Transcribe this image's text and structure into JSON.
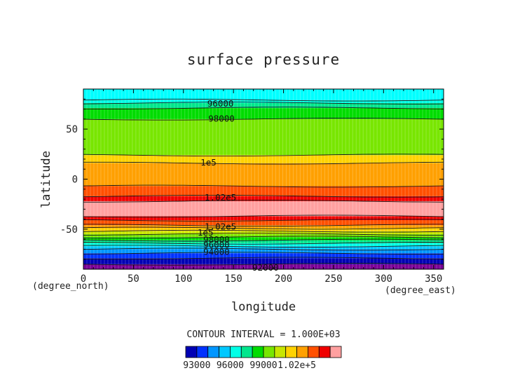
{
  "chart_data": {
    "type": "heatmap",
    "title": "surface pressure",
    "xlabel": "longitude",
    "ylabel": "latitude",
    "x_units": "(degree_east)",
    "y_units": "(degree_north)",
    "xlim": [
      0,
      360
    ],
    "ylim": [
      -90,
      90
    ],
    "x_ticks": [
      0,
      50,
      100,
      150,
      200,
      250,
      300,
      350
    ],
    "y_ticks": [
      -50,
      0,
      50
    ],
    "contour_interval_text": "CONTOUR INTERVAL = 1.000E+03",
    "colorbar": {
      "levels": [
        92000,
        93000,
        94000,
        95000,
        96000,
        97000,
        98000,
        99000,
        100000,
        101000,
        102000,
        103000
      ],
      "colors": [
        "#0000b4",
        "#0032ff",
        "#0096ff",
        "#00c8ff",
        "#00ffe6",
        "#00e68c",
        "#00dc00",
        "#78e600",
        "#c8e600",
        "#ffd200",
        "#ffa000",
        "#ff5000",
        "#f00000",
        "#ffa0a0"
      ],
      "tick_labels": [
        "93000",
        "96000",
        "99000",
        "1.02e+5"
      ]
    },
    "bands": [
      {
        "lat_min": -90,
        "lat_max": -85,
        "color": "#7a0096"
      },
      {
        "lat_min": -85,
        "lat_max": -79,
        "color": "#0000b4"
      },
      {
        "lat_min": -79,
        "lat_max": -74,
        "color": "#0032ff"
      },
      {
        "lat_min": -74,
        "lat_max": -70,
        "color": "#0096ff"
      },
      {
        "lat_min": -70,
        "lat_max": -67,
        "color": "#00c8ff"
      },
      {
        "lat_min": -67,
        "lat_max": -64,
        "color": "#00ffe6"
      },
      {
        "lat_min": -64,
        "lat_max": -61,
        "color": "#00e68c"
      },
      {
        "lat_min": -61,
        "lat_max": -58,
        "color": "#00dc00"
      },
      {
        "lat_min": -58,
        "lat_max": -55,
        "color": "#78e600"
      },
      {
        "lat_min": -55,
        "lat_max": -52,
        "color": "#c8e600"
      },
      {
        "lat_min": -52,
        "lat_max": -49,
        "color": "#ffd200"
      },
      {
        "lat_min": -49,
        "lat_max": -46,
        "color": "#ffa000"
      },
      {
        "lat_min": -46,
        "lat_max": -41,
        "color": "#ff5000"
      },
      {
        "lat_min": -41,
        "lat_max": -37,
        "color": "#f00000"
      },
      {
        "lat_min": -37,
        "lat_max": -22,
        "color": "#ffa0a0"
      },
      {
        "lat_min": -22,
        "lat_max": -17,
        "color": "#f00000"
      },
      {
        "lat_min": -17,
        "lat_max": -7,
        "color": "#ff5000"
      },
      {
        "lat_min": -7,
        "lat_max": 16,
        "color": "#ffa000"
      },
      {
        "lat_min": 16,
        "lat_max": 24,
        "color": "#ffd200"
      },
      {
        "lat_min": 24,
        "lat_max": 60,
        "color": "#78e600"
      },
      {
        "lat_min": 60,
        "lat_max": 71,
        "color": "#00dc00"
      },
      {
        "lat_min": 71,
        "lat_max": 76,
        "color": "#00e68c"
      },
      {
        "lat_min": 76,
        "lat_max": 79,
        "color": "#00ffe6"
      },
      {
        "lat_min": 79,
        "lat_max": 90,
        "color": "#00ffff"
      }
    ],
    "contour_lines_lat": [
      -85,
      -79,
      -74,
      -70,
      -67,
      -64,
      -61,
      -58,
      -55,
      -52,
      -49,
      -46,
      -41,
      -37,
      -22,
      -17,
      -7,
      16,
      24,
      60,
      71,
      76,
      79
    ],
    "contour_labels": [
      {
        "text": "96000",
        "lon": 137,
        "lat": 76
      },
      {
        "text": "98000",
        "lon": 138,
        "lat": 61
      },
      {
        "text": "1e5",
        "lon": 125,
        "lat": 17
      },
      {
        "text": "1.02e5",
        "lon": 137,
        "lat": -18
      },
      {
        "text": "1.02e5",
        "lon": 137,
        "lat": -47
      },
      {
        "text": "1e5",
        "lon": 122,
        "lat": -53
      },
      {
        "text": "98000",
        "lon": 133,
        "lat": -60
      },
      {
        "text": "96000",
        "lon": 133,
        "lat": -65
      },
      {
        "text": "94000",
        "lon": 133,
        "lat": -72
      },
      {
        "text": "92000",
        "lon": 182,
        "lat": -88
      }
    ]
  }
}
